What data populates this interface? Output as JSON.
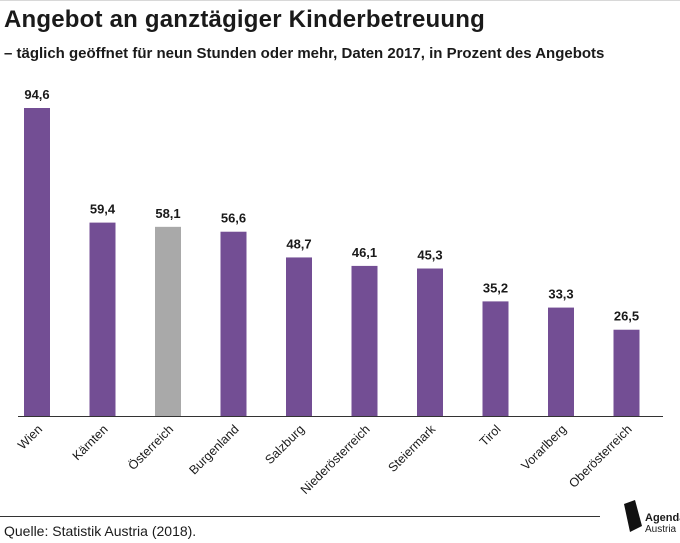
{
  "header": {
    "title": "Angebot an ganztägiger Kinderbetreuung",
    "subtitle": "– täglich geöffnet für neun Stunden oder mehr, Daten 2017, in Prozent des Angebots"
  },
  "footer": {
    "source": "Quelle: Statistik Austria (2018).",
    "logo_line1": "Agenda",
    "logo_line2": "Austria"
  },
  "colors": {
    "bar": "#734e94",
    "highlight": "#a9a9a9",
    "axis": "#333333"
  },
  "chart_data": {
    "type": "bar",
    "title": "Angebot an ganztägiger Kinderbetreuung",
    "subtitle": "– täglich geöffnet für neun Stunden oder mehr, Daten 2017, in Prozent des Angebots",
    "categories": [
      "Wien",
      "Kärnten",
      "Österreich",
      "Burgenland",
      "Salzburg",
      "Niederösterreich",
      "Steiermark",
      "Tirol",
      "Vorarlberg",
      "Oberösterreich"
    ],
    "values": [
      94.6,
      59.4,
      58.1,
      56.6,
      48.7,
      46.1,
      45.3,
      35.2,
      33.3,
      26.5
    ],
    "value_labels": [
      "94,6",
      "59,4",
      "58,1",
      "56,6",
      "48,7",
      "46,1",
      "45,3",
      "35,2",
      "33,3",
      "26,5"
    ],
    "highlight_category": "Österreich",
    "ylim": [
      0,
      94.6
    ],
    "grid": false,
    "xlabel": "",
    "ylabel": ""
  }
}
